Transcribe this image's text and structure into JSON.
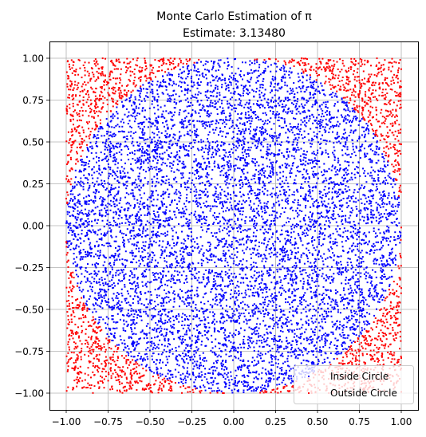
{
  "chart_data": {
    "type": "scatter",
    "title": "Monte Carlo Estimation of π",
    "subtitle": "Estimate: 3.13480",
    "xlabel": "",
    "ylabel": "",
    "xlim": [
      -1.1,
      1.1
    ],
    "ylim": [
      -1.1,
      1.1
    ],
    "grid": true,
    "legend_position": "bottom-right",
    "total_points": 10000,
    "estimate": 3.1348,
    "x_ticks": [
      {
        "value": -1.0,
        "label": "−1.00"
      },
      {
        "value": -0.75,
        "label": "−0.75"
      },
      {
        "value": -0.5,
        "label": "−0.50"
      },
      {
        "value": -0.25,
        "label": "−0.25"
      },
      {
        "value": 0.0,
        "label": "0.00"
      },
      {
        "value": 0.25,
        "label": "0.25"
      },
      {
        "value": 0.5,
        "label": "0.50"
      },
      {
        "value": 0.75,
        "label": "0.75"
      },
      {
        "value": 1.0,
        "label": "1.00"
      }
    ],
    "y_ticks": [
      {
        "value": 1.0,
        "label": "1.00"
      },
      {
        "value": 0.75,
        "label": "0.75"
      },
      {
        "value": 0.5,
        "label": "0.50"
      },
      {
        "value": 0.25,
        "label": "0.25"
      },
      {
        "value": 0.0,
        "label": "0.00"
      },
      {
        "value": -0.25,
        "label": "−0.25"
      },
      {
        "value": -0.5,
        "label": "−0.50"
      },
      {
        "value": -0.75,
        "label": "−0.75"
      },
      {
        "value": -1.0,
        "label": "−1.00"
      }
    ],
    "series": [
      {
        "name": "Inside Circle",
        "color": "#0000ff",
        "condition": "x^2 + y^2 <= 1"
      },
      {
        "name": "Outside Circle",
        "color": "#ff0000",
        "condition": "x^2 + y^2 > 1"
      }
    ]
  }
}
